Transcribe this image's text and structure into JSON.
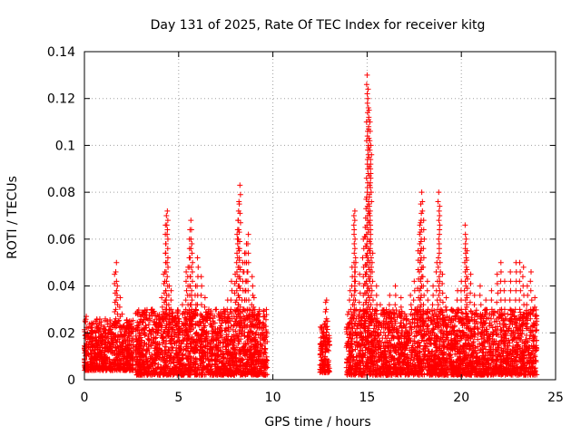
{
  "chart_data": {
    "type": "scatter",
    "title": "Day 131 of 2025, Rate Of TEC Index for receiver kitg",
    "xlabel": "GPS time / hours",
    "ylabel": "ROTI / TECUs",
    "xlim": [
      0,
      25
    ],
    "ylim": [
      0,
      0.14
    ],
    "xticks": [
      0,
      5,
      10,
      15,
      20,
      25
    ],
    "xtick_labels": [
      "0",
      "5",
      "10",
      "15",
      "20",
      "25"
    ],
    "yticks": [
      0,
      0.02,
      0.04,
      0.06,
      0.08,
      0.1,
      0.12,
      0.14
    ],
    "ytick_labels": [
      "0",
      "0.02",
      "0.04",
      "0.06",
      "0.08",
      "0.1",
      "0.12",
      "0.14"
    ],
    "grid": true,
    "marker": "+",
    "color": "#ff0000",
    "series": [
      {
        "name": "ROTI",
        "points": [
          [
            0.1,
            0.027
          ],
          [
            0.2,
            0.022
          ],
          [
            0.4,
            0.015
          ],
          [
            0.6,
            0.02
          ],
          [
            0.8,
            0.012
          ],
          [
            1.0,
            0.018
          ],
          [
            1.2,
            0.025
          ],
          [
            1.4,
            0.014
          ],
          [
            1.6,
            0.045
          ],
          [
            1.7,
            0.05
          ],
          [
            1.75,
            0.04
          ],
          [
            1.9,
            0.035
          ],
          [
            2.0,
            0.028
          ],
          [
            2.2,
            0.016
          ],
          [
            2.4,
            0.02
          ],
          [
            2.6,
            0.012
          ],
          [
            2.8,
            0.023
          ],
          [
            3.0,
            0.027
          ],
          [
            3.2,
            0.02
          ],
          [
            3.4,
            0.015
          ],
          [
            3.6,
            0.03
          ],
          [
            3.8,
            0.018
          ],
          [
            4.0,
            0.026
          ],
          [
            4.1,
            0.035
          ],
          [
            4.2,
            0.045
          ],
          [
            4.3,
            0.066
          ],
          [
            4.35,
            0.07
          ],
          [
            4.4,
            0.072
          ],
          [
            4.5,
            0.04
          ],
          [
            4.6,
            0.038
          ],
          [
            4.8,
            0.025
          ],
          [
            5.0,
            0.02
          ],
          [
            5.2,
            0.032
          ],
          [
            5.4,
            0.046
          ],
          [
            5.5,
            0.048
          ],
          [
            5.6,
            0.064
          ],
          [
            5.65,
            0.068
          ],
          [
            5.7,
            0.058
          ],
          [
            5.9,
            0.04
          ],
          [
            6.0,
            0.052
          ],
          [
            6.2,
            0.044
          ],
          [
            6.4,
            0.035
          ],
          [
            6.6,
            0.03
          ],
          [
            6.8,
            0.025
          ],
          [
            7.0,
            0.03
          ],
          [
            7.2,
            0.022
          ],
          [
            7.4,
            0.03
          ],
          [
            7.6,
            0.034
          ],
          [
            7.8,
            0.042
          ],
          [
            8.0,
            0.045
          ],
          [
            8.1,
            0.062
          ],
          [
            8.15,
            0.068
          ],
          [
            8.2,
            0.076
          ],
          [
            8.25,
            0.083
          ],
          [
            8.4,
            0.05
          ],
          [
            8.5,
            0.054
          ],
          [
            8.6,
            0.058
          ],
          [
            8.7,
            0.062
          ],
          [
            8.9,
            0.044
          ],
          [
            9.0,
            0.035
          ],
          [
            9.2,
            0.028
          ],
          [
            9.4,
            0.022
          ],
          [
            9.6,
            0.018
          ],
          [
            12.6,
            0.012
          ],
          [
            12.7,
            0.02
          ],
          [
            12.8,
            0.033
          ],
          [
            12.85,
            0.034
          ],
          [
            12.9,
            0.025
          ],
          [
            13.0,
            0.015
          ],
          [
            14.0,
            0.022
          ],
          [
            14.1,
            0.038
          ],
          [
            14.2,
            0.048
          ],
          [
            14.3,
            0.07
          ],
          [
            14.35,
            0.072
          ],
          [
            14.4,
            0.05
          ],
          [
            14.6,
            0.045
          ],
          [
            14.8,
            0.06
          ],
          [
            14.9,
            0.065
          ],
          [
            14.95,
            0.077
          ],
          [
            15.0,
            0.13
          ],
          [
            15.05,
            0.124
          ],
          [
            15.1,
            0.115
          ],
          [
            15.15,
            0.11
          ],
          [
            15.2,
            0.1
          ],
          [
            15.3,
            0.054
          ],
          [
            15.5,
            0.04
          ],
          [
            15.7,
            0.032
          ],
          [
            16.0,
            0.028
          ],
          [
            16.2,
            0.036
          ],
          [
            16.5,
            0.04
          ],
          [
            16.8,
            0.035
          ],
          [
            17.0,
            0.028
          ],
          [
            17.3,
            0.036
          ],
          [
            17.5,
            0.042
          ],
          [
            17.7,
            0.055
          ],
          [
            17.8,
            0.066
          ],
          [
            17.85,
            0.075
          ],
          [
            17.9,
            0.08
          ],
          [
            18.0,
            0.068
          ],
          [
            18.2,
            0.042
          ],
          [
            18.5,
            0.04
          ],
          [
            18.7,
            0.05
          ],
          [
            18.8,
            0.08
          ],
          [
            18.85,
            0.074
          ],
          [
            19.0,
            0.045
          ],
          [
            19.2,
            0.035
          ],
          [
            19.5,
            0.03
          ],
          [
            19.8,
            0.038
          ],
          [
            20.0,
            0.042
          ],
          [
            20.2,
            0.066
          ],
          [
            20.25,
            0.06
          ],
          [
            20.3,
            0.055
          ],
          [
            20.5,
            0.045
          ],
          [
            20.7,
            0.036
          ],
          [
            21.0,
            0.04
          ],
          [
            21.3,
            0.034
          ],
          [
            21.6,
            0.038
          ],
          [
            21.9,
            0.045
          ],
          [
            22.1,
            0.05
          ],
          [
            22.3,
            0.042
          ],
          [
            22.6,
            0.046
          ],
          [
            22.9,
            0.05
          ],
          [
            23.1,
            0.05
          ],
          [
            23.3,
            0.048
          ],
          [
            23.5,
            0.04
          ],
          [
            23.7,
            0.046
          ],
          [
            23.9,
            0.035
          ],
          [
            24.0,
            0.025
          ]
        ],
        "dense_bands": [
          {
            "x_range": [
              0.0,
              2.6
            ],
            "y_range": [
              0.004,
              0.026
            ]
          },
          {
            "x_range": [
              2.7,
              9.7
            ],
            "y_range": [
              0.002,
              0.03
            ]
          },
          {
            "x_range": [
              12.5,
              13.0
            ],
            "y_range": [
              0.003,
              0.024
            ]
          },
          {
            "x_range": [
              13.9,
              24.0
            ],
            "y_range": [
              0.002,
              0.03
            ]
          }
        ]
      }
    ]
  }
}
